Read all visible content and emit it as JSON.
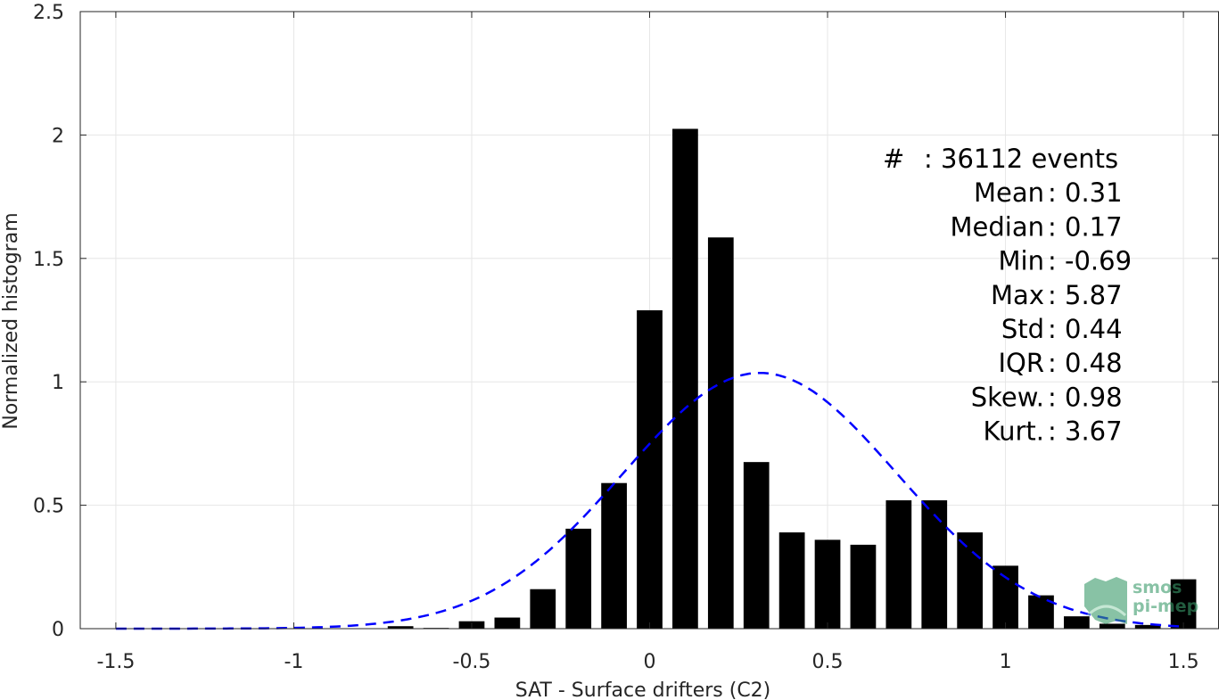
{
  "chart_data": {
    "type": "bar",
    "xlabel": "SAT - Surface drifters (C2)",
    "ylabel": "Normalized histogram",
    "xlim": [
      -1.6,
      1.6
    ],
    "ylim": [
      0,
      2.5
    ],
    "xticks": [
      -1.5,
      -1,
      -0.5,
      0,
      0.5,
      1,
      1.5
    ],
    "xtick_labels": [
      "-1.5",
      "-1",
      "-0.5",
      "0",
      "0.5",
      "1",
      "1.5"
    ],
    "yticks": [
      0,
      0.5,
      1,
      1.5,
      2,
      2.5
    ],
    "ytick_labels": [
      "0",
      "0.5",
      "1",
      "1.5",
      "2",
      "2.5"
    ],
    "grid": true,
    "bar_color": "#000000",
    "bins": [
      {
        "x": -0.7,
        "value": 0.01
      },
      {
        "x": -0.6,
        "value": 0.003
      },
      {
        "x": -0.5,
        "value": 0.03
      },
      {
        "x": -0.4,
        "value": 0.045
      },
      {
        "x": -0.3,
        "value": 0.16
      },
      {
        "x": -0.2,
        "value": 0.405
      },
      {
        "x": -0.1,
        "value": 0.59
      },
      {
        "x": 0.0,
        "value": 1.29
      },
      {
        "x": 0.1,
        "value": 2.025
      },
      {
        "x": 0.2,
        "value": 1.585
      },
      {
        "x": 0.3,
        "value": 0.675
      },
      {
        "x": 0.4,
        "value": 0.39
      },
      {
        "x": 0.5,
        "value": 0.36
      },
      {
        "x": 0.6,
        "value": 0.34
      },
      {
        "x": 0.7,
        "value": 0.52
      },
      {
        "x": 0.8,
        "value": 0.52
      },
      {
        "x": 0.9,
        "value": 0.39
      },
      {
        "x": 1.0,
        "value": 0.255
      },
      {
        "x": 1.1,
        "value": 0.135
      },
      {
        "x": 1.2,
        "value": 0.05
      },
      {
        "x": 1.3,
        "value": 0.02
      },
      {
        "x": 1.4,
        "value": 0.015
      },
      {
        "x": 1.5,
        "value": 0.2
      }
    ],
    "fit_curve": {
      "style": "dashed",
      "color": "#0000ff",
      "mean": 0.31,
      "std": 0.385,
      "x_range": [
        -1.5,
        1.5
      ]
    },
    "stats_box": [
      {
        "key": "#  ",
        "value": ": 36112 events"
      },
      {
        "key": "Mean",
        "value": ": 0.31"
      },
      {
        "key": "Median",
        "value": ": 0.17"
      },
      {
        "key": "Min",
        "value": ": -0.69"
      },
      {
        "key": "Max",
        "value": ": 5.87"
      },
      {
        "key": "Std",
        "value": ": 0.44"
      },
      {
        "key": "IQR",
        "value": ": 0.48"
      },
      {
        "key": "Skew.",
        "value": ": 0.98"
      },
      {
        "key": "Kurt.",
        "value": ": 3.67"
      }
    ]
  },
  "logo": {
    "line1": "smos",
    "line2": "pi-mep",
    "color": "#3a9a6a"
  }
}
